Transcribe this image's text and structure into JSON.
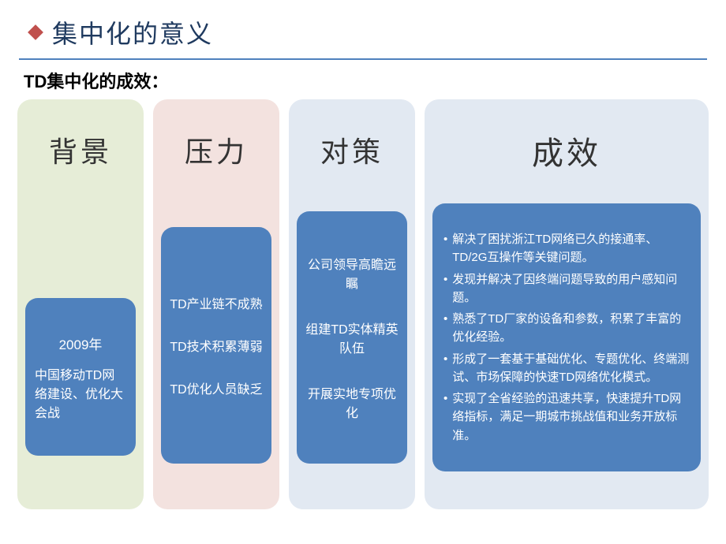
{
  "title": "集中化的意义",
  "subtitle": "TD集中化的成效：",
  "accent_color": "#c0504d",
  "rule_color": "#4f81bd",
  "box_blue": "#4f81bd",
  "columns": [
    {
      "key": "bg",
      "head": "背景",
      "bg_color": "#e6edd7",
      "items_mode": "block",
      "year": "2009年",
      "body": "中国移动TD网络建设、优化大会战"
    },
    {
      "key": "pressure",
      "head": "压力",
      "bg_color": "#f3e2df",
      "items_mode": "list",
      "items": [
        "TD产业链不成熟",
        "TD技术积累薄弱",
        "TD优化人员缺乏"
      ]
    },
    {
      "key": "counter",
      "head": "对策",
      "bg_color": "#e2e9f2",
      "items_mode": "list",
      "items": [
        "公司领导高瞻远瞩",
        "组建TD实体精英队伍",
        "开展实地专项优化"
      ]
    },
    {
      "key": "result",
      "head": "成效",
      "bg_color": "#e2e9f2",
      "items_mode": "bullets",
      "items": [
        "解决了困扰浙江TD网络已久的接通率、TD/2G互操作等关键问题。",
        "发现并解决了因终端问题导致的用户感知问题。",
        "熟悉了TD厂家的设备和参数，积累了丰富的优化经验。",
        "形成了一套基于基础优化、专题优化、终端测试、市场保障的快速TD网络优化模式。",
        "实现了全省经验的迅速共享，快速提升TD网络指标，满足一期城市挑战值和业务开放标准。"
      ]
    }
  ]
}
